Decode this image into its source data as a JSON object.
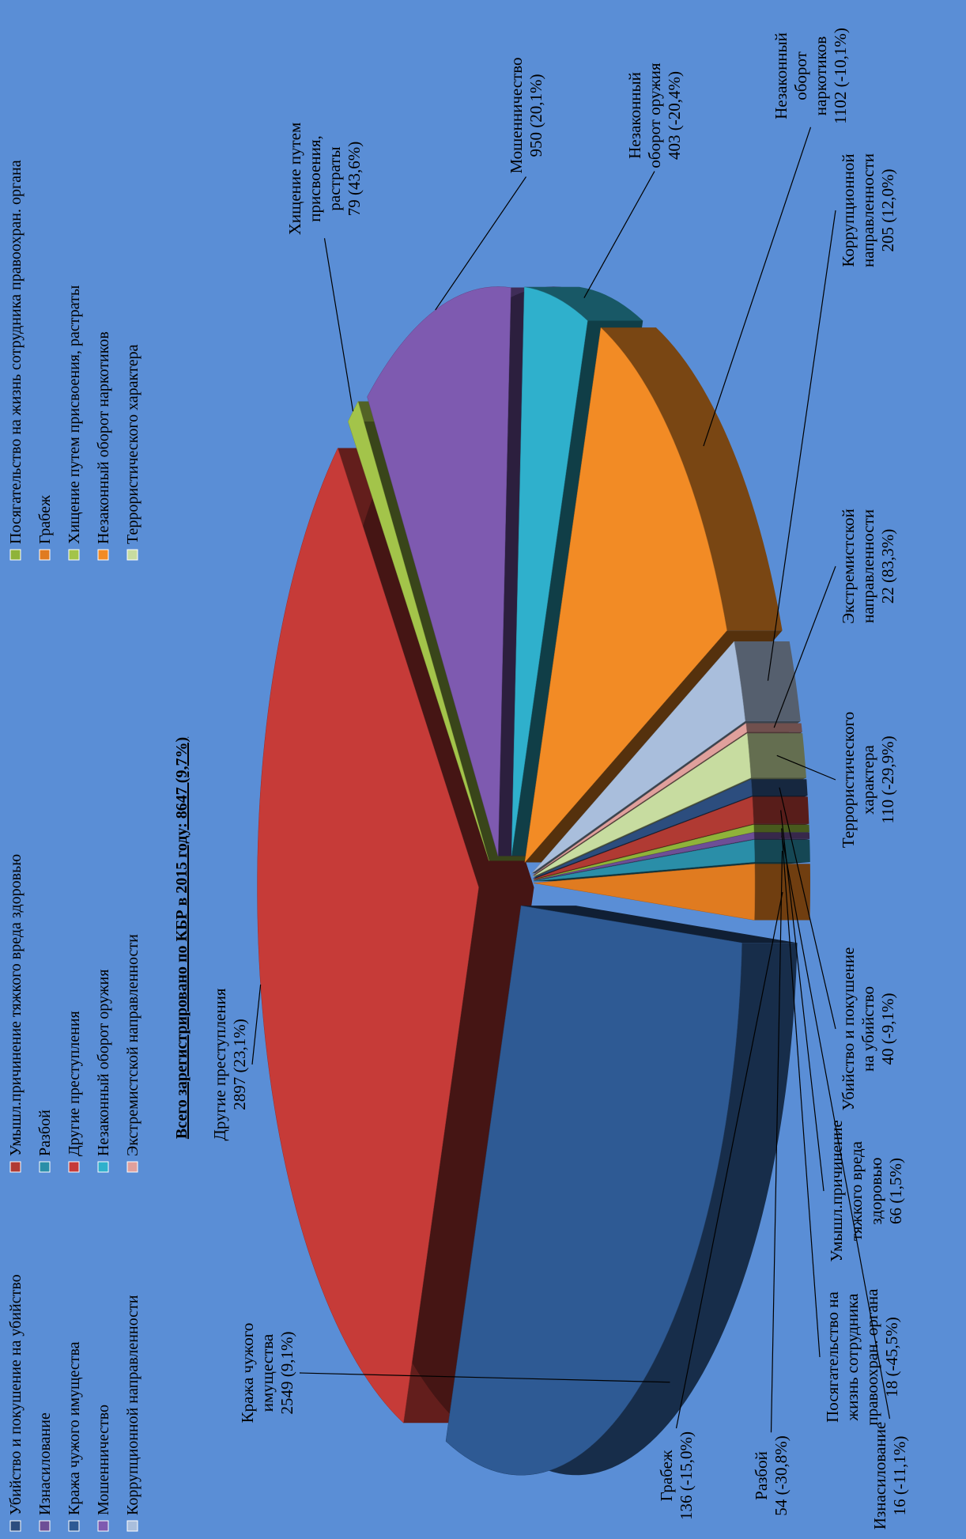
{
  "chart_data": {
    "type": "pie",
    "title": "Всего зарегистрировано по КБР в 2015 году: 8647 (9,7%)",
    "categories": [
      "Убийство и покушение на убийство",
      "Умышл.причинение тяжкого вреда здоровью",
      "Посягательство на жизнь сотрудника правоохран. органа",
      "Изнасилование",
      "Разбой",
      "Грабеж",
      "Кража чужого имущества",
      "Другие преступления",
      "Хищение путем присвоения, растраты",
      "Мошенничество",
      "Незаконный оборот оружия",
      "Незаконный оборот наркотиков",
      "Коррупционной направленности",
      "Экстремистской направленности",
      "Террористического характера"
    ],
    "values": [
      40,
      66,
      18,
      16,
      54,
      136,
      2549,
      2897,
      79,
      950,
      403,
      1102,
      205,
      22,
      110
    ],
    "value_labels": [
      "40 (-9,1%)",
      "66 (1,5%)",
      "18 (-45,5%)",
      "16 (-11,1%)",
      "54 (-30,8%)",
      "136 (-15,0%)",
      "2549 (9,1%)",
      "2897 (23,1%)",
      "79 (43,6%)",
      "950 (20,1%)",
      "403 (-20,4%)",
      "1102 (-10,1%)",
      "205 (12,0%)",
      "22 (83,3%)",
      "110 (-29,9%)"
    ],
    "colors": [
      "#2c4d7e",
      "#b03a33",
      "#8fb33a",
      "#6d4f96",
      "#2a8ea8",
      "#e07b20",
      "#2e5a94",
      "#c63b38",
      "#a3c44a",
      "#7e5ab0",
      "#2fb0cc",
      "#f28b25",
      "#a9bedc",
      "#e0a09c",
      "#c7dca0"
    ],
    "legend": "top"
  }
}
